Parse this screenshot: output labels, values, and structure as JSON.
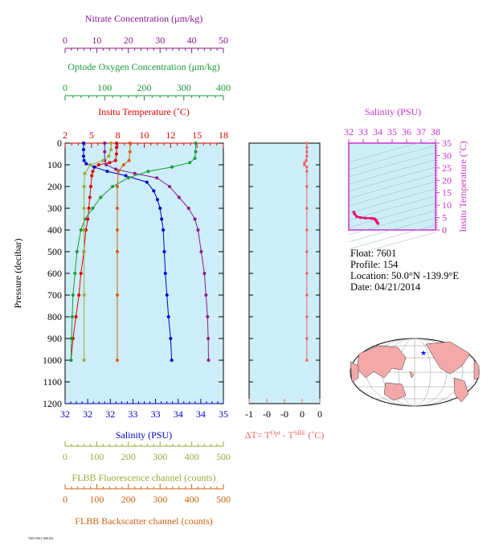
{
  "colors": {
    "nitrate": "#8b1a8b",
    "oxygen": "#1a9a3a",
    "temperature": "#dd0000",
    "salinity": "#0000cc",
    "fluorescence": "#9aaa3a",
    "backscatter": "#d06010",
    "dt": "#ee6666",
    "panel_bg": "#cdeef8",
    "ts_frame": "#cc33cc",
    "ts_line": "#ee1177"
  },
  "axes": {
    "nitrate": {
      "label": "Nitrate Concentration (μm/kg)",
      "ticks": [
        "0",
        "10",
        "20",
        "30",
        "40",
        "50"
      ]
    },
    "oxygen": {
      "label": "Optode Oxygen Concentration (μm/kg)",
      "ticks": [
        "0",
        "100",
        "200",
        "300",
        "400"
      ]
    },
    "temperature": {
      "label": "Insitu Temperature (˚C)",
      "ticks": [
        "2",
        "5",
        "8",
        "10",
        "12",
        "15",
        "18"
      ]
    },
    "pressure": {
      "label": "Pressure (decibar)",
      "ticks": [
        "0",
        "100",
        "200",
        "300",
        "400",
        "500",
        "600",
        "700",
        "800",
        "900",
        "1000",
        "1100",
        "1200"
      ]
    },
    "salinity": {
      "label": "Salinity (PSU)",
      "ticks": [
        "32",
        "32",
        "32",
        "33",
        "33",
        "34",
        "34",
        "35"
      ]
    },
    "fluorescence": {
      "label": "FLBB Fluorescence channel (counts)",
      "ticks": [
        "0",
        "100",
        "200",
        "300",
        "400",
        "500"
      ]
    },
    "backscatter": {
      "label": "FLBB Backscatter channel (counts)",
      "ticks": [
        "0",
        "100",
        "200",
        "300",
        "400",
        "500"
      ]
    },
    "dt": {
      "label_main": "ΔT= T",
      "sup1": "Opt",
      "label_mid": " - T",
      "sup2": "SBE",
      "label_end": " (˚C)",
      "ticks": [
        "-1",
        "-0",
        "-0",
        "0",
        "0"
      ]
    },
    "ts_salinity": {
      "label": "Salinity (PSU)",
      "ticks": [
        "32",
        "33",
        "34",
        "35",
        "36",
        "37",
        "38"
      ]
    },
    "ts_temperature": {
      "label": "Insitu Temperature (˚C)",
      "ticks": [
        "0",
        "5",
        "10",
        "15",
        "20",
        "25",
        "30",
        "35"
      ]
    }
  },
  "info": {
    "float": "Float:  7601",
    "profile": "Profile:  154",
    "location": "Location:  50.0°N  -139.9°E",
    "date": "Date:  04/21/2014"
  },
  "footer_text": "7601/7601_000154",
  "chart_data": [
    {
      "type": "line",
      "title": "",
      "ylabel": "Pressure (decibar)",
      "ylim": [
        1200,
        0
      ],
      "grid": false,
      "series": [
        {
          "name": "Insitu Temperature (˚C)",
          "key": "temperature",
          "xlim": [
            2,
            18
          ],
          "points": [
            [
              7.2,
              0
            ],
            [
              7.2,
              20
            ],
            [
              7.2,
              50
            ],
            [
              7.1,
              80
            ],
            [
              6.5,
              90
            ],
            [
              5.4,
              100
            ],
            [
              5.0,
              110
            ],
            [
              4.8,
              130
            ],
            [
              4.7,
              150
            ],
            [
              4.6,
              200
            ],
            [
              4.5,
              250
            ],
            [
              4.4,
              300
            ],
            [
              4.3,
              350
            ],
            [
              4.1,
              400
            ],
            [
              3.9,
              500
            ],
            [
              3.6,
              600
            ],
            [
              3.4,
              700
            ],
            [
              3.1,
              800
            ],
            [
              2.8,
              900
            ],
            [
              2.6,
              1000
            ]
          ]
        },
        {
          "name": "Salinity (PSU)",
          "key": "salinity",
          "xlim": [
            32,
            35
          ],
          "points": [
            [
              32.35,
              0
            ],
            [
              32.35,
              30
            ],
            [
              32.35,
              60
            ],
            [
              32.36,
              80
            ],
            [
              32.4,
              95
            ],
            [
              32.55,
              110
            ],
            [
              32.8,
              130
            ],
            [
              33.15,
              150
            ],
            [
              33.55,
              180
            ],
            [
              33.68,
              220
            ],
            [
              33.75,
              260
            ],
            [
              33.8,
              300
            ],
            [
              33.83,
              350
            ],
            [
              33.86,
              400
            ],
            [
              33.88,
              500
            ],
            [
              33.9,
              600
            ],
            [
              33.93,
              700
            ],
            [
              33.96,
              800
            ],
            [
              34.0,
              900
            ],
            [
              34.02,
              1000
            ]
          ]
        },
        {
          "name": "Nitrate Concentration (μm/kg)",
          "key": "nitrate",
          "xlim": [
            0,
            50
          ],
          "points": [
            [
              12.5,
              0
            ],
            [
              12.5,
              40
            ],
            [
              12.5,
              80
            ],
            [
              13,
              100
            ],
            [
              16,
              120
            ],
            [
              22,
              140
            ],
            [
              29,
              160
            ],
            [
              33,
              200
            ],
            [
              36,
              250
            ],
            [
              39,
              300
            ],
            [
              41,
              350
            ],
            [
              42,
              400
            ],
            [
              43,
              500
            ],
            [
              44,
              600
            ],
            [
              44.5,
              700
            ],
            [
              45,
              800
            ],
            [
              45.2,
              900
            ],
            [
              45.3,
              1000
            ]
          ]
        },
        {
          "name": "Optode Oxygen Concentration (μm/kg)",
          "key": "oxygen",
          "xlim": [
            0,
            400
          ],
          "points": [
            [
              330,
              0
            ],
            [
              330,
              40
            ],
            [
              328,
              70
            ],
            [
              315,
              90
            ],
            [
              270,
              110
            ],
            [
              210,
              130
            ],
            [
              160,
              160
            ],
            [
              120,
              200
            ],
            [
              90,
              250
            ],
            [
              70,
              300
            ],
            [
              50,
              350
            ],
            [
              40,
              400
            ],
            [
              30,
              500
            ],
            [
              25,
              600
            ],
            [
              20,
              700
            ],
            [
              18,
              800
            ],
            [
              16,
              900
            ],
            [
              15,
              1000
            ]
          ]
        },
        {
          "name": "FLBB Fluorescence channel (counts)",
          "key": "fluorescence",
          "xlim": [
            0,
            500
          ],
          "points": [
            [
              145,
              0
            ],
            [
              145,
              30
            ],
            [
              138,
              60
            ],
            [
              120,
              80
            ],
            [
              80,
              100
            ],
            [
              62,
              140
            ],
            [
              60,
              200
            ],
            [
              60,
              300
            ],
            [
              60,
              400
            ],
            [
              60,
              500
            ],
            [
              60,
              700
            ],
            [
              60,
              1000
            ]
          ]
        },
        {
          "name": "FLBB Backscatter channel (counts)",
          "key": "backscatter",
          "xlim": [
            0,
            500
          ],
          "points": [
            [
              205,
              0
            ],
            [
              205,
              40
            ],
            [
              202,
              80
            ],
            [
              185,
              100
            ],
            [
              168,
              130
            ],
            [
              165,
              200
            ],
            [
              165,
              300
            ],
            [
              165,
              400
            ],
            [
              165,
              500
            ],
            [
              165,
              700
            ],
            [
              165,
              1000
            ]
          ]
        }
      ]
    },
    {
      "type": "line",
      "title": "",
      "xlabel": "ΔT= T^Opt - T^SBE (˚C)",
      "ylim": [
        1200,
        0
      ],
      "xlim": [
        -1,
        0.2
      ],
      "series": [
        {
          "name": "ΔT",
          "points": [
            [
              -0.02,
              0
            ],
            [
              -0.02,
              20
            ],
            [
              -0.02,
              40
            ],
            [
              -0.02,
              60
            ],
            [
              -0.03,
              80
            ],
            [
              -0.06,
              90
            ],
            [
              -0.06,
              100
            ],
            [
              -0.02,
              110
            ],
            [
              -0.02,
              130
            ],
            [
              -0.02,
              200
            ],
            [
              -0.02,
              300
            ],
            [
              -0.02,
              400
            ],
            [
              -0.02,
              500
            ],
            [
              -0.02,
              600
            ],
            [
              -0.02,
              700
            ],
            [
              -0.02,
              800
            ],
            [
              -0.02,
              900
            ],
            [
              -0.02,
              1000
            ]
          ]
        }
      ]
    },
    {
      "type": "line",
      "title": "",
      "xlabel": "Salinity (PSU)",
      "ylabel": "Insitu Temperature (˚C)",
      "xlim": [
        32,
        38
      ],
      "ylim": [
        0,
        35
      ],
      "series": [
        {
          "name": "T-S",
          "points": [
            [
              32.35,
              7.2
            ],
            [
              32.36,
              7.1
            ],
            [
              32.4,
              6.5
            ],
            [
              32.55,
              5.4
            ],
            [
              32.8,
              5.0
            ],
            [
              33.15,
              4.8
            ],
            [
              33.55,
              4.7
            ],
            [
              33.7,
              4.6
            ],
            [
              33.8,
              4.4
            ],
            [
              33.86,
              4.1
            ],
            [
              33.9,
              3.7
            ],
            [
              33.95,
              3.2
            ],
            [
              34.0,
              2.8
            ],
            [
              34.02,
              2.6
            ]
          ]
        }
      ]
    }
  ]
}
